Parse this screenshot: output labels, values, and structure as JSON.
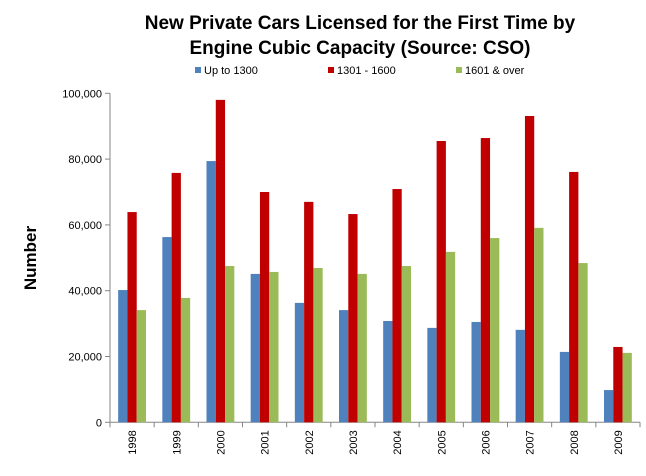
{
  "chart_data": {
    "type": "bar",
    "title": "New Private Cars Licensed for the First Time by Engine Cubic Capacity (Source: CSO)",
    "title_lines": [
      "New Private Cars Licensed for the First Time by",
      "Engine Cubic Capacity (Source: CSO)"
    ],
    "xlabel": "",
    "ylabel": "Number",
    "ylim": [
      0,
      100000
    ],
    "yticks": [
      0,
      20000,
      40000,
      60000,
      80000,
      100000
    ],
    "ytick_labels": [
      "0",
      "20,000",
      "40,000",
      "60,000",
      "80,000",
      "100,000"
    ],
    "grid": false,
    "legend_position": "top",
    "categories": [
      "1998",
      "1999",
      "2000",
      "2001",
      "2002",
      "2003",
      "2004",
      "2005",
      "2006",
      "2007",
      "2008",
      "2009"
    ],
    "series": [
      {
        "name": "Up to 1300",
        "color": "#4F81BD",
        "values": [
          40200,
          56300,
          79400,
          45100,
          36300,
          34100,
          30800,
          28700,
          30500,
          28100,
          21400,
          9800
        ]
      },
      {
        "name": "1301 - 1600",
        "color": "#C00000",
        "values": [
          63900,
          75800,
          98000,
          70000,
          67000,
          63300,
          70900,
          85500,
          86400,
          93100,
          76100,
          22900
        ]
      },
      {
        "name": "1601 & over",
        "color": "#9BBB59",
        "values": [
          34100,
          37800,
          47500,
          45700,
          46900,
          45100,
          47500,
          51800,
          56000,
          59100,
          48400,
          21100
        ]
      }
    ]
  }
}
